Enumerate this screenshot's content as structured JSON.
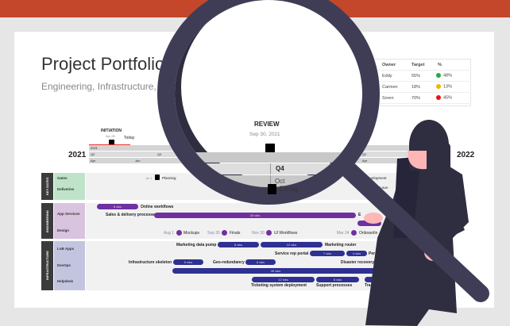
{
  "slide": {
    "title": "Project Portfolio Su",
    "subtitle": "Engineering, Infrastructure, Key"
  },
  "portfolio_table": {
    "headers": [
      "Owner",
      "Target",
      "%"
    ],
    "rows": [
      {
        "project": "",
        "owner": "Eddy",
        "target": "55%",
        "pct": "48%",
        "status_color": "#22aa44"
      },
      {
        "project": "ructure",
        "owner": "Carmen",
        "target": "18%",
        "pct": "13%",
        "status_color": "#f0b400"
      },
      {
        "project": "",
        "owner": "Soren",
        "target": "70%",
        "pct": "45%",
        "status_color": "#ee1111"
      }
    ]
  },
  "timeline": {
    "initiation": {
      "label": "INITIATION",
      "date": "Apr 25"
    },
    "today": "Today",
    "year_start": "2021",
    "year_end": "2022",
    "year_row": "2021",
    "quarters": [
      "Q2",
      "Q3",
      "Q4",
      "Q2"
    ],
    "months": [
      "Apr",
      "Jun",
      "Apr"
    ],
    "review": {
      "label": "REVIEW",
      "date": "Sep 30, 2021"
    },
    "lens_quarter": "Q4",
    "lens_months": [
      "Aug",
      "Oct"
    ],
    "lens_design": "Desig"
  },
  "swimlanes": [
    {
      "name": "KEY DATES",
      "color": "#bfe3c8",
      "rows": [
        {
          "label": "Gates"
        },
        {
          "label": "Deliveries"
        }
      ]
    },
    {
      "name": "ENGINEERING",
      "color": "#d9c3df",
      "rows": [
        {
          "label": "App Services"
        },
        {
          "label": "Design"
        }
      ]
    },
    {
      "name": "INFRASTRUCTURE",
      "color": "#c3c5e0",
      "rows": [
        {
          "label": "LoB Apps"
        },
        {
          "label": "DevOps"
        },
        {
          "label": "Helpdesk"
        }
      ]
    }
  ],
  "gates": {
    "jul1": "Jul 1",
    "planning": "Planning",
    "development": "Development",
    "release": "Release"
  },
  "deliveries": {
    "a": "rce Portal Laun",
    "b": "ing Com"
  },
  "app_services": {
    "online": "Online workflows",
    "online_dur": "8 wks",
    "sales": "Sales & delivery processes",
    "sales_dur": "33 wks",
    "e": "E"
  },
  "design": [
    {
      "date": "Aug 1",
      "label": "Mockups"
    },
    {
      "date": "Sep 30",
      "label": "Finals"
    },
    {
      "date": "Nov 30",
      "label": "UI Workflows"
    },
    {
      "date": "Mar 24",
      "label": "Onboardin"
    }
  ],
  "lob": {
    "pump": "Marketing data pump",
    "pump_dur": "8 wks",
    "router_dur": "12 wks",
    "router": "Marketing router",
    "portal": "Service rep portal",
    "portal_dur": "7 wks",
    "d2": "4 wks",
    "per": "Per"
  },
  "devops": {
    "skeleton": "Infrastructure skeleton",
    "sk_dur": "6 wks",
    "geo": "Geo-redundancy",
    "geo_dur": "6 wks",
    "dr": "Disaster recovery",
    "long_dur": "45 wks"
  },
  "helpdesk": {
    "d1": "12 wks",
    "d2": "8 wks",
    "tsd": "Ticketing system deployment",
    "sp": "Support processes",
    "tr": "Tra"
  },
  "colors": {
    "header_bar": "#c4472b",
    "ink": "#3f3d56",
    "skin": "#ffb6b6"
  }
}
